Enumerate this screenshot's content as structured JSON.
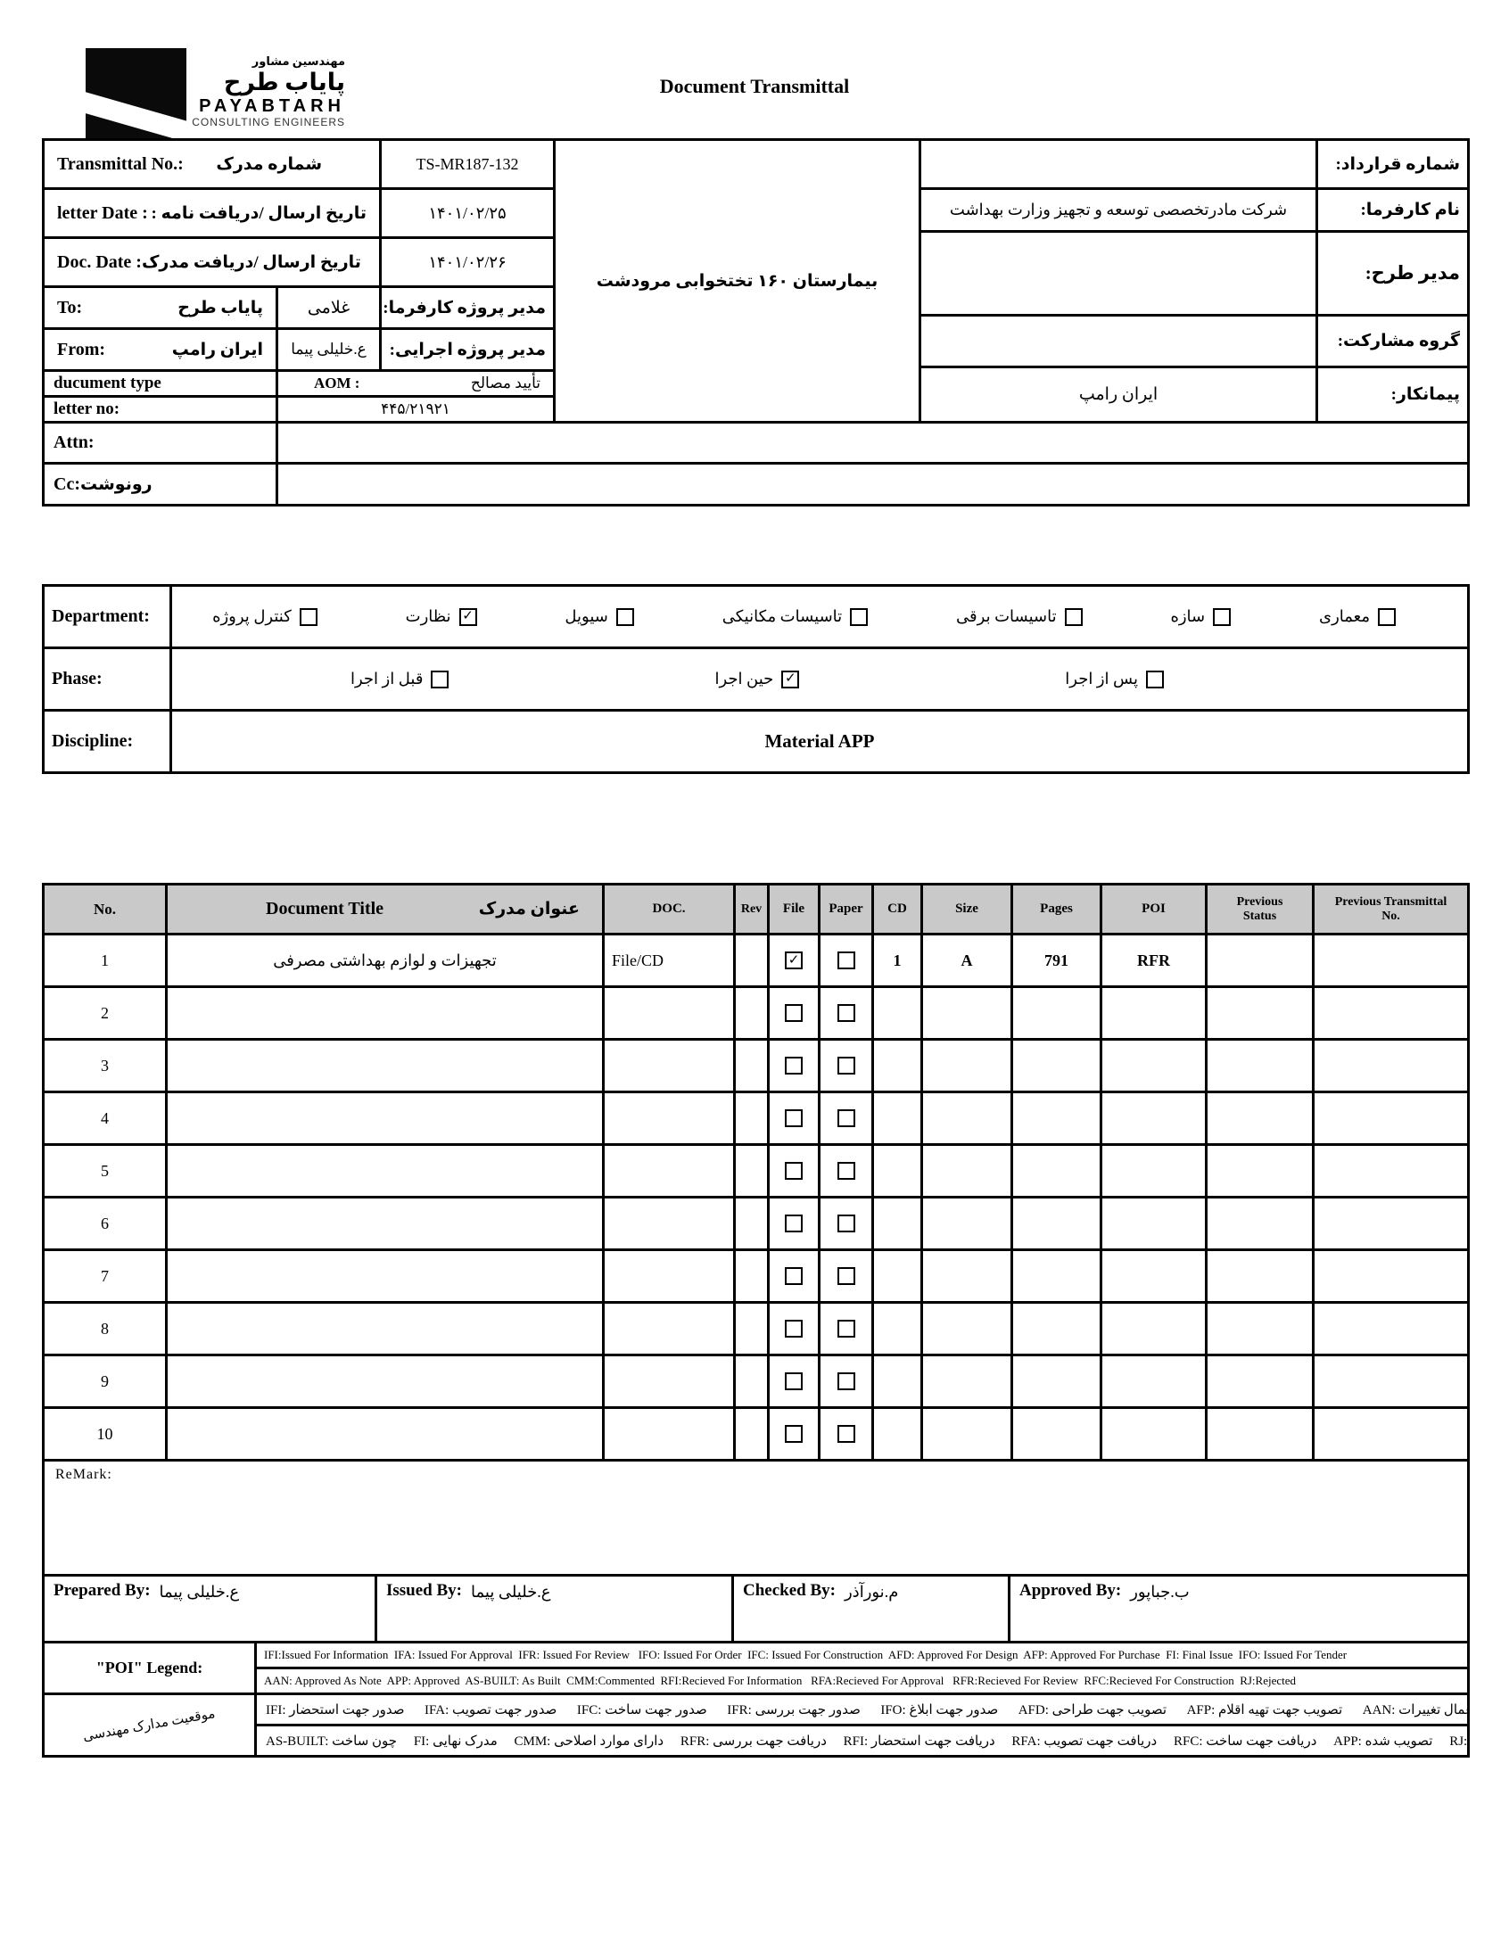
{
  "page": {
    "title": "Document Transmittal"
  },
  "logo": {
    "fa_top": "مهندسین مشاور",
    "fa_name": "پایاب طرح",
    "en_name": "PAYABTARH",
    "en_tagline": "CONSULTING ENGINEERS"
  },
  "header": {
    "transmittal": {
      "en": "Transmittal No.:",
      "fa": "شماره مدرک",
      "value": "TS-MR187-132"
    },
    "letter_date": {
      "en": "letter Date  :",
      "fa": "تاریخ ارسال /دریافت نامه :",
      "value": "۱۴۰۱/۰۲/۲۵"
    },
    "doc_date": {
      "en": "Doc. Date :",
      "fa": "تاریخ ارسال /دریافت مدرک",
      "value": "۱۴۰۱/۰۲/۲۶"
    },
    "to": {
      "en": "To:",
      "value": "پایاب طرح",
      "person": "غلامی",
      "role": "مدیر پروژه کارفرما:"
    },
    "from": {
      "en": "From:",
      "value": "ایران رامپ",
      "person": "ع.خلیلی پیما",
      "role": "مدیر پروژه اجرایی:"
    },
    "doc_type": {
      "en": "ducument type",
      "code": "AOM   :",
      "fa": "تأیید مصالح"
    },
    "letter_no": {
      "en": "letter no:",
      "value": "۴۴۵/۲۱۹۲۱"
    },
    "attn": {
      "en": "Attn:",
      "value": ""
    },
    "cc": {
      "en": "Cc:",
      "fa": "رونوشت",
      "value": ""
    },
    "project": "بیمارستان ۱۶۰ تختخوابی مرودشت",
    "contract_no": {
      "label": "شماره قرارداد:",
      "value": ""
    },
    "client": {
      "label": "نام کارفرما:",
      "value": "شرکت مادرتخصصی توسعه و تجهیز وزارت بهداشت"
    },
    "plan_manager": {
      "label": "مدیر طرح:",
      "value": ""
    },
    "jv_group": {
      "label": "گروه مشارکت:",
      "value": ""
    },
    "contractor": {
      "label": "پیمانکار:",
      "value": "ایران رامپ"
    }
  },
  "classification": {
    "department": {
      "label": "Department:",
      "items": [
        {
          "label": "معماری",
          "check": ""
        },
        {
          "label": "سازه",
          "check": ""
        },
        {
          "label": "تاسیسات برقی",
          "check": ""
        },
        {
          "label": "تاسیسات مکانیکی",
          "check": ""
        },
        {
          "label": "سیویل",
          "check": ""
        },
        {
          "label": "نظارت",
          "check": "✓"
        },
        {
          "label": "کنترل پروژه",
          "check": ""
        }
      ]
    },
    "phase": {
      "label": "Phase:",
      "items": [
        {
          "label": "پس از اجرا",
          "check": ""
        },
        {
          "label": "حین اجرا",
          "check": "✓"
        },
        {
          "label": "قبل از اجرا",
          "check": ""
        }
      ]
    },
    "discipline": {
      "label": "Discipline:",
      "value": "Material APP"
    }
  },
  "documents": {
    "headers": {
      "no": "No.",
      "title_en": "Document Title",
      "title_fa": "عنوان مدرک",
      "doc": "DOC.",
      "rev": "Rev",
      "file": "File",
      "paper": "Paper",
      "cd": "CD",
      "size": "Size",
      "pages": "Pages",
      "poi": "POI",
      "prev_status": "Previous Status",
      "prev_transmittal": "Previous Transmittal No."
    },
    "remark_label": "ReMark:",
    "rows": [
      {
        "no": "1",
        "title": "تجهیزات و لوازم بهداشتی مصرفی",
        "doc": "File/CD",
        "rev": "",
        "file_check": "✓",
        "paper_check": "",
        "cd": "1",
        "size": "A",
        "pages": "791",
        "poi": "RFR",
        "prev_status": "",
        "prev_transmittal": ""
      },
      {
        "no": "2",
        "title": "",
        "doc": "",
        "rev": "",
        "file_check": "",
        "paper_check": "",
        "cd": "",
        "size": "",
        "pages": "",
        "poi": "",
        "prev_status": "",
        "prev_transmittal": ""
      },
      {
        "no": "3",
        "title": "",
        "doc": "",
        "rev": "",
        "file_check": "",
        "paper_check": "",
        "cd": "",
        "size": "",
        "pages": "",
        "poi": "",
        "prev_status": "",
        "prev_transmittal": ""
      },
      {
        "no": "4",
        "title": "",
        "doc": "",
        "rev": "",
        "file_check": "",
        "paper_check": "",
        "cd": "",
        "size": "",
        "pages": "",
        "poi": "",
        "prev_status": "",
        "prev_transmittal": ""
      },
      {
        "no": "5",
        "title": "",
        "doc": "",
        "rev": "",
        "file_check": "",
        "paper_check": "",
        "cd": "",
        "size": "",
        "pages": "",
        "poi": "",
        "prev_status": "",
        "prev_transmittal": ""
      },
      {
        "no": "6",
        "title": "",
        "doc": "",
        "rev": "",
        "file_check": "",
        "paper_check": "",
        "cd": "",
        "size": "",
        "pages": "",
        "poi": "",
        "prev_status": "",
        "prev_transmittal": ""
      },
      {
        "no": "7",
        "title": "",
        "doc": "",
        "rev": "",
        "file_check": "",
        "paper_check": "",
        "cd": "",
        "size": "",
        "pages": "",
        "poi": "",
        "prev_status": "",
        "prev_transmittal": ""
      },
      {
        "no": "8",
        "title": "",
        "doc": "",
        "rev": "",
        "file_check": "",
        "paper_check": "",
        "cd": "",
        "size": "",
        "pages": "",
        "poi": "",
        "prev_status": "",
        "prev_transmittal": ""
      },
      {
        "no": "9",
        "title": "",
        "doc": "",
        "rev": "",
        "file_check": "",
        "paper_check": "",
        "cd": "",
        "size": "",
        "pages": "",
        "poi": "",
        "prev_status": "",
        "prev_transmittal": ""
      },
      {
        "no": "10",
        "title": "",
        "doc": "",
        "rev": "",
        "file_check": "",
        "paper_check": "",
        "cd": "",
        "size": "",
        "pages": "",
        "poi": "",
        "prev_status": "",
        "prev_transmittal": ""
      }
    ]
  },
  "signatures": [
    {
      "label": "Prepared By:",
      "name": "ع.خلیلی پیما"
    },
    {
      "label": "Issued By:",
      "name": "ع.خلیلی پیما"
    },
    {
      "label": "Checked By:",
      "name": "م.نورآذر"
    },
    {
      "label": "Approved By:",
      "name": "ب.جباپور"
    }
  ],
  "poi_legend": {
    "label": "\"POI\" Legend:",
    "line1": "IFI:Issued For Information  IFA: Issued For Approval  IFR: Issued For Review   IFO: Issued For Order  IFC: Issued For Construction  AFD: Approved For Design  AFP: Approved For Purchase  FI: Final Issue  IFO: Issued For Tender",
    "line2": "AAN: Approved As Note  APP: Approved  AS-BUILT: As Built  CMM:Commented  RFI:Recieved For Information   RFA:Recieved For Approval   RFR:Recieved For Review  RFC:Recieved For Construction  RJ:Rejected"
  },
  "fa_legend": {
    "label": "موقعیت مدارک مهندسی",
    "line1": "IFI: صدور جهت استحضار      IFA: صدور جهت تصویب      IFC: صدور جهت ساخت      IFR: صدور جهت بررسی      IFO: صدور جهت ابلاغ      AFD: تصویب جهت طراحی      AFP: تصویب جهت تهیه اقلام      AAN: تصویب به شرط اعمال تغییرات",
    "line2": "AS-BUILT: چون ساخت     FI: مدرک نهایی     CMM: دارای موارد اصلاحی     RFR: دریافت جهت بررسی     RFI: دریافت جهت استحضار     RFA: دریافت جهت تصویب     RFC: دریافت جهت ساخت     APP: تصویب شده     RJ: عودت داده شده"
  }
}
